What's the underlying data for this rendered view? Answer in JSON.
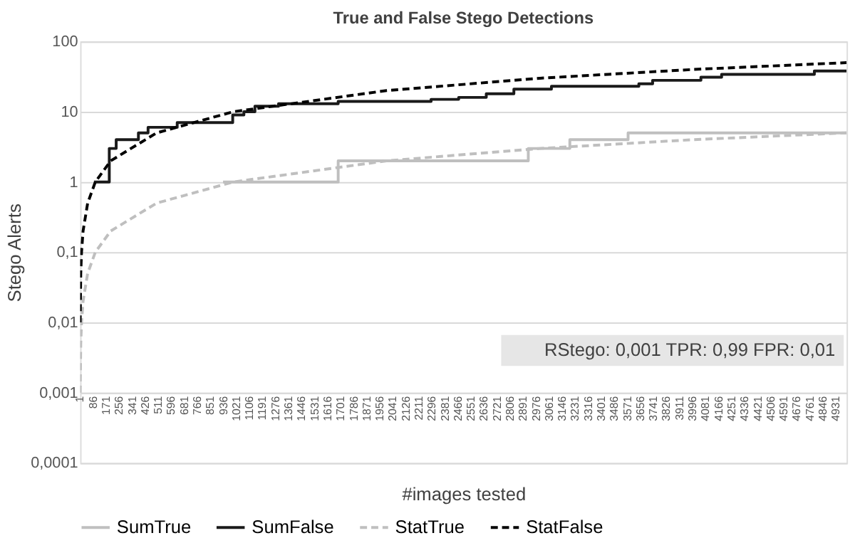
{
  "chart_data": {
    "type": "line",
    "title": "True and False Stego Detections",
    "xlabel": "#images tested",
    "ylabel": "Stego Alerts",
    "annotations": [
      "RStego: 0,001 TPR: 0,99 FPR: 0,01"
    ],
    "series": [
      {
        "name": "SumTrue",
        "type": "step",
        "line_style": "solid",
        "color": "#bfbfbf",
        "x": [
          933,
          1684,
          2924,
          3195,
          3575,
          5000
        ],
        "values": [
          1,
          2,
          3,
          4,
          5,
          5
        ]
      },
      {
        "name": "SumFalse",
        "type": "step",
        "line_style": "solid",
        "color": "#1a1a1a",
        "x": [
          91,
          191,
          236,
          381,
          444,
          634,
          996,
          1069,
          1141,
          1295,
          1684,
          2290,
          2470,
          2650,
          2830,
          3075,
          3645,
          3735,
          4050,
          4185,
          4790,
          5000
        ],
        "values": [
          1,
          3,
          4,
          5,
          6,
          7,
          9,
          10,
          12,
          13,
          14,
          15,
          16,
          18,
          21,
          23,
          25,
          28,
          31,
          34,
          38,
          38
        ]
      },
      {
        "name": "StatTrue",
        "type": "line",
        "line_style": "dashed",
        "color": "#bfbfbf",
        "x": [
          1,
          5,
          10,
          20,
          50,
          100,
          200,
          500,
          1000,
          2000,
          3000,
          4000,
          5000
        ],
        "values": [
          0.001,
          0.005,
          0.01,
          0.02,
          0.05,
          0.1,
          0.2,
          0.5,
          1,
          2,
          3,
          4,
          5
        ]
      },
      {
        "name": "StatFalse",
        "type": "line",
        "line_style": "dashed",
        "color": "#000000",
        "x": [
          1,
          5,
          10,
          20,
          50,
          100,
          200,
          500,
          1000,
          2000,
          3000,
          4000,
          5000
        ],
        "values": [
          0.01,
          0.05,
          0.1,
          0.2,
          0.5,
          1,
          2,
          5,
          10,
          20,
          30,
          40,
          50
        ]
      }
    ],
    "log": "y",
    "xlim": [
      1,
      5000
    ],
    "ylim": [
      0.0001,
      100
    ],
    "xticks": [
      1,
      86,
      171,
      256,
      341,
      426,
      511,
      596,
      681,
      766,
      851,
      936,
      1021,
      1106,
      1191,
      1276,
      1361,
      1446,
      1531,
      1616,
      1701,
      1786,
      1871,
      1956,
      2041,
      2126,
      2211,
      2296,
      2381,
      2466,
      2551,
      2636,
      2721,
      2806,
      2891,
      2976,
      3061,
      3146,
      3231,
      3316,
      3401,
      3486,
      3571,
      3656,
      3741,
      3826,
      3911,
      3996,
      4081,
      4166,
      4251,
      4336,
      4421,
      4506,
      4591,
      4676,
      4761,
      4846,
      4931
    ],
    "yticks": [
      {
        "value": 0.0001,
        "label": "0,0001"
      },
      {
        "value": 0.001,
        "label": "0,001"
      },
      {
        "value": 0.01,
        "label": "0,01"
      },
      {
        "value": 0.1,
        "label": "0,1"
      },
      1,
      10,
      100
    ],
    "grid": "y",
    "legend": "bottom"
  }
}
